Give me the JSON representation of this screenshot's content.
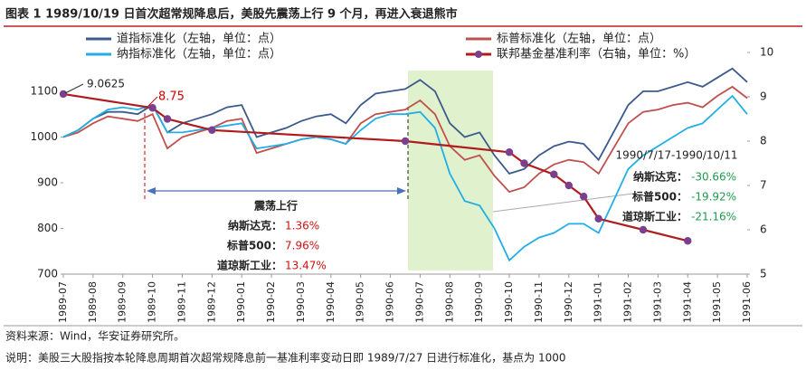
{
  "chart_data": {
    "type": "line",
    "title": "图表 1 1989/10/19 日首次超常规降息后，美股先震荡上行 9 个月，再进入衰退熊市",
    "categories": [
      "1989-07",
      null,
      "1989-08",
      null,
      "1989-09",
      null,
      "1989-10",
      null,
      "1989-11",
      null,
      "1989-12",
      null,
      "1990-01",
      null,
      "1990-02",
      null,
      "1990-03",
      null,
      "1990-04",
      null,
      "1990-05",
      null,
      "1990-06",
      null,
      "1990-07",
      null,
      "1990-08",
      null,
      "1990-09",
      null,
      "1990-10",
      null,
      "1990-11",
      null,
      "1990-12",
      null,
      "1991-01",
      null,
      "1991-02",
      null,
      "1991-03",
      null,
      "1991-04",
      null,
      "1991-05",
      null,
      "1991-06"
    ],
    "series": [
      {
        "name": "道指标准化（左轴，单位：点）",
        "color": "#3c5a8c",
        "values": [
          1000,
          1015,
          1040,
          1055,
          1055,
          1050,
          1070,
          1010,
          1030,
          1040,
          1050,
          1065,
          1070,
          1000,
          1010,
          1020,
          1035,
          1045,
          1050,
          1030,
          1070,
          1095,
          1100,
          1105,
          1125,
          1100,
          1030,
          1000,
          1010,
          960,
          920,
          930,
          960,
          980,
          990,
          985,
          950,
          1010,
          1070,
          1100,
          1100,
          1110,
          1120,
          1110,
          1130,
          1150,
          1120
        ]
      },
      {
        "name": "标普标准化（左轴，单位：点）",
        "color": "#c0504d",
        "values": [
          1000,
          1010,
          1030,
          1045,
          1040,
          1035,
          1050,
          975,
          1000,
          1010,
          1020,
          1035,
          1040,
          965,
          975,
          985,
          995,
          1000,
          995,
          985,
          1030,
          1050,
          1055,
          1060,
          1080,
          1050,
          980,
          950,
          960,
          915,
          880,
          890,
          920,
          940,
          950,
          945,
          920,
          975,
          1030,
          1055,
          1060,
          1070,
          1075,
          1065,
          1090,
          1110,
          1085
        ]
      },
      {
        "name": "纳指标准化（左轴，单位：点）",
        "color": "#22aee6",
        "values": [
          1000,
          1015,
          1040,
          1060,
          1065,
          1060,
          1070,
          1010,
          1010,
          1015,
          1020,
          1025,
          1030,
          975,
          980,
          985,
          995,
          1000,
          995,
          985,
          1015,
          1040,
          1050,
          1050,
          1055,
          1020,
          920,
          860,
          850,
          800,
          730,
          760,
          780,
          790,
          810,
          810,
          790,
          860,
          930,
          960,
          980,
          1000,
          1020,
          1030,
          1060,
          1090,
          1050
        ]
      },
      {
        "name": "联邦基金基准利率（右轴，单位：%）",
        "color": "#b01c1c",
        "marker_color": "#7b3f8c",
        "axis": "y2",
        "connect_gaps": true,
        "values": [
          9.0625,
          null,
          null,
          null,
          null,
          null,
          8.75,
          8.5,
          null,
          null,
          8.25,
          null,
          null,
          null,
          null,
          null,
          null,
          null,
          null,
          null,
          null,
          null,
          null,
          8.0,
          null,
          null,
          null,
          null,
          null,
          null,
          7.75,
          7.5,
          null,
          7.25,
          7.0,
          6.75,
          6.25,
          null,
          null,
          6.0,
          null,
          null,
          5.75,
          null,
          null,
          null,
          null
        ]
      }
    ],
    "ylim": [
      700,
      1185
    ],
    "yticks": [
      700,
      800,
      900,
      1000,
      1100
    ],
    "y2lim": [
      5,
      10
    ],
    "y2ticks": [
      5,
      6,
      7,
      8,
      9,
      10
    ],
    "annotations": {
      "rate_start": "9.0625",
      "rate_oct": "8.75",
      "rally": {
        "title": "震荡上行",
        "rows": [
          {
            "name": "纳斯达克：",
            "value": "1.36%"
          },
          {
            "name": "标普500：",
            "value": "7.96%"
          },
          {
            "name": "道琼斯工业：",
            "value": "13.47%"
          }
        ]
      },
      "recession": {
        "title": "1990/7/17-1990/10/11",
        "rows": [
          {
            "name": "纳斯达克：",
            "value": "-30.66%"
          },
          {
            "name": "标普500：",
            "value": "-19.92%"
          },
          {
            "name": "道琼斯工业：",
            "value": "-21.16%"
          }
        ]
      }
    },
    "source": "资料来源：Wind，华安证券研究所。",
    "note": "说明：美股三大股指按本轮降息周期首次超常规降息前一基准利率变动日即 1989/7/27 日进行标准化，基点为 1000"
  }
}
